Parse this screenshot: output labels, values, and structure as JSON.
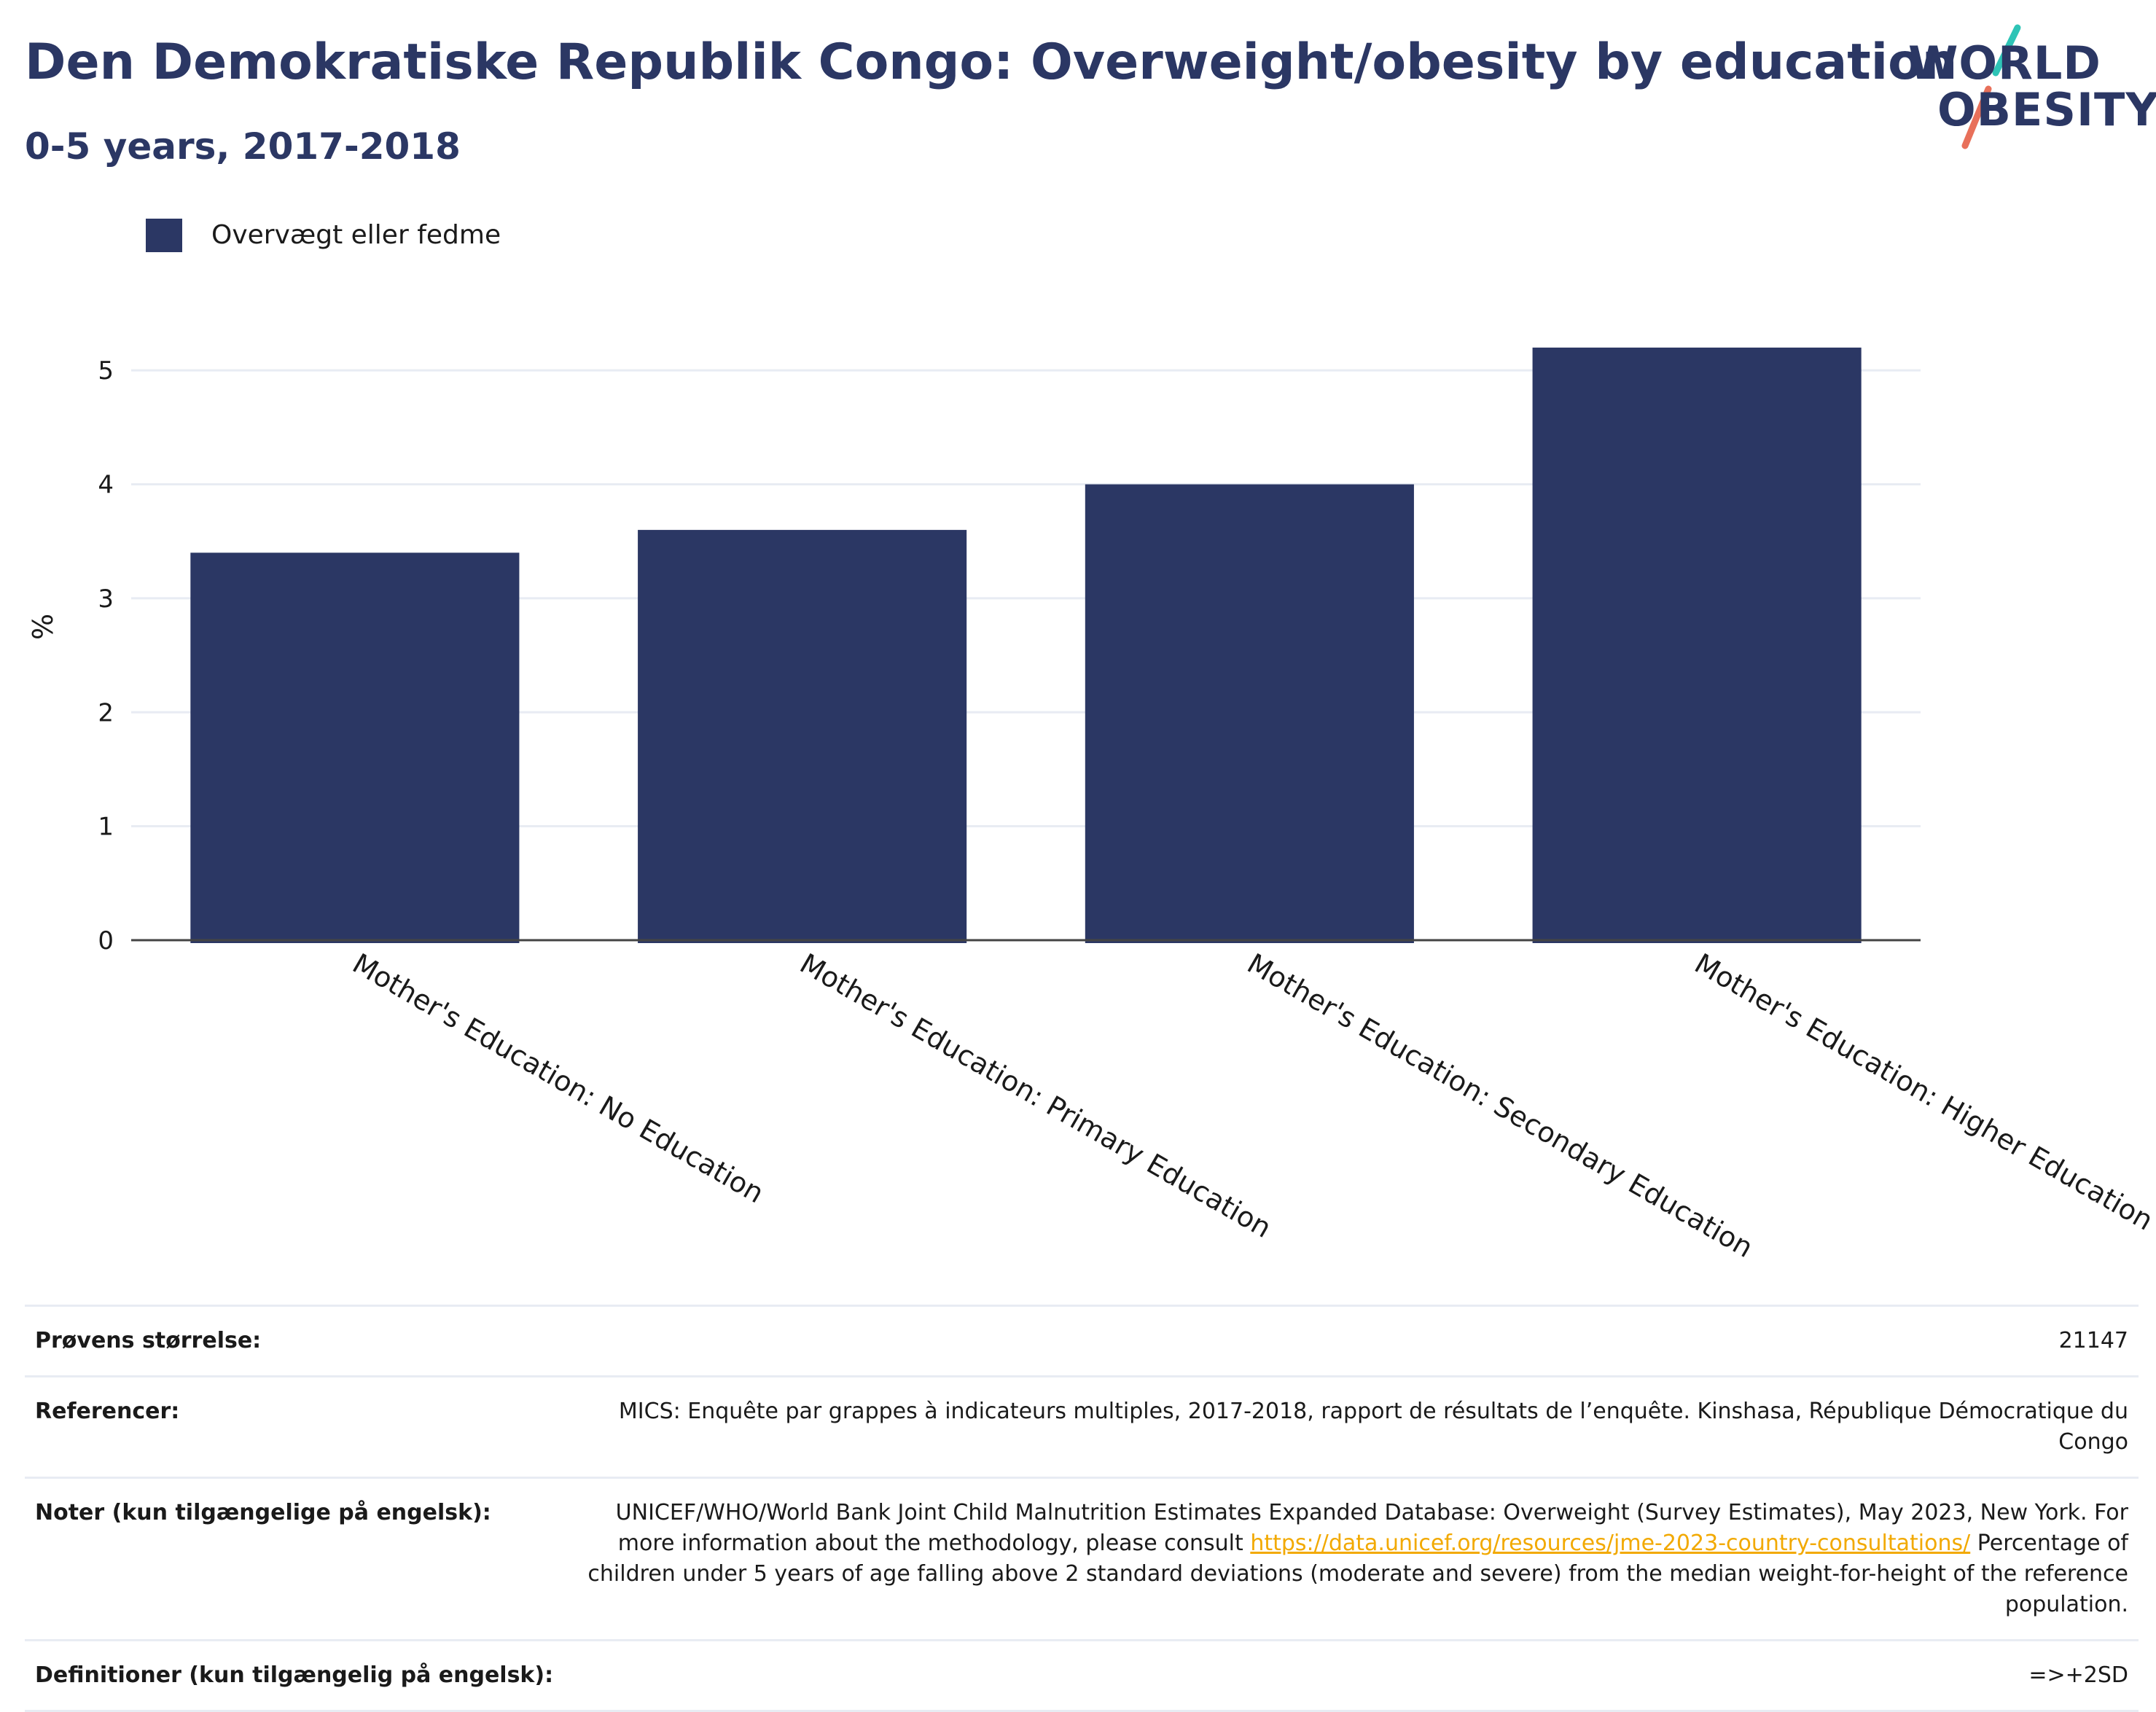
{
  "header": {
    "title": "Den Demokratiske Republik Congo: Overweight/obesity by education",
    "subtitle": "0-5 years, 2017-2018"
  },
  "logo": {
    "line1": "WORLD",
    "line2": "OBESITY",
    "accent_colors": [
      "#2ec4b6",
      "#e8705a"
    ]
  },
  "chart_data": {
    "type": "bar",
    "categories": [
      "Mother's Education: No Education",
      "Mother's Education: Primary Education",
      "Mother's Education: Secondary Education",
      "Mother's Education: Higher Education"
    ],
    "series": [
      {
        "name": "Overvægt eller fedme",
        "values": [
          3.4,
          3.6,
          4.0,
          5.2
        ],
        "color": "#2b3764"
      }
    ],
    "ylabel": "%",
    "ylim": [
      0,
      5.5
    ],
    "yticks": [
      0,
      1,
      2,
      3,
      4,
      5
    ],
    "grid": true,
    "legend_position": "top-left"
  },
  "info": {
    "sample_label": "Prøvens størrelse:",
    "sample_value": "21147",
    "references_label": "Referencer:",
    "references_value": "MICS: Enquête par grappes à indicateurs multiples, 2017-2018, rapport de résultats de l’enquête. Kinshasa, République Démocratique du Congo",
    "notes_label": "Noter (kun tilgængelige på engelsk):",
    "notes_text_1": "UNICEF/WHO/World Bank Joint Child Malnutrition Estimates Expanded Database: Overweight (Survey Estimates), May 2023, New York. For more information about the methodology, please consult ",
    "notes_link": "https://data.unicef.org/resources/jme-2023-country-consultations/",
    "notes_text_2": " Percentage of children under 5 years of age falling above 2 standard deviations (moderate and severe) from the median weight-for-height of the reference population.",
    "definitions_label": "Definitioner (kun tilgængelig på engelsk):",
    "definitions_value": "=>+2SD"
  }
}
